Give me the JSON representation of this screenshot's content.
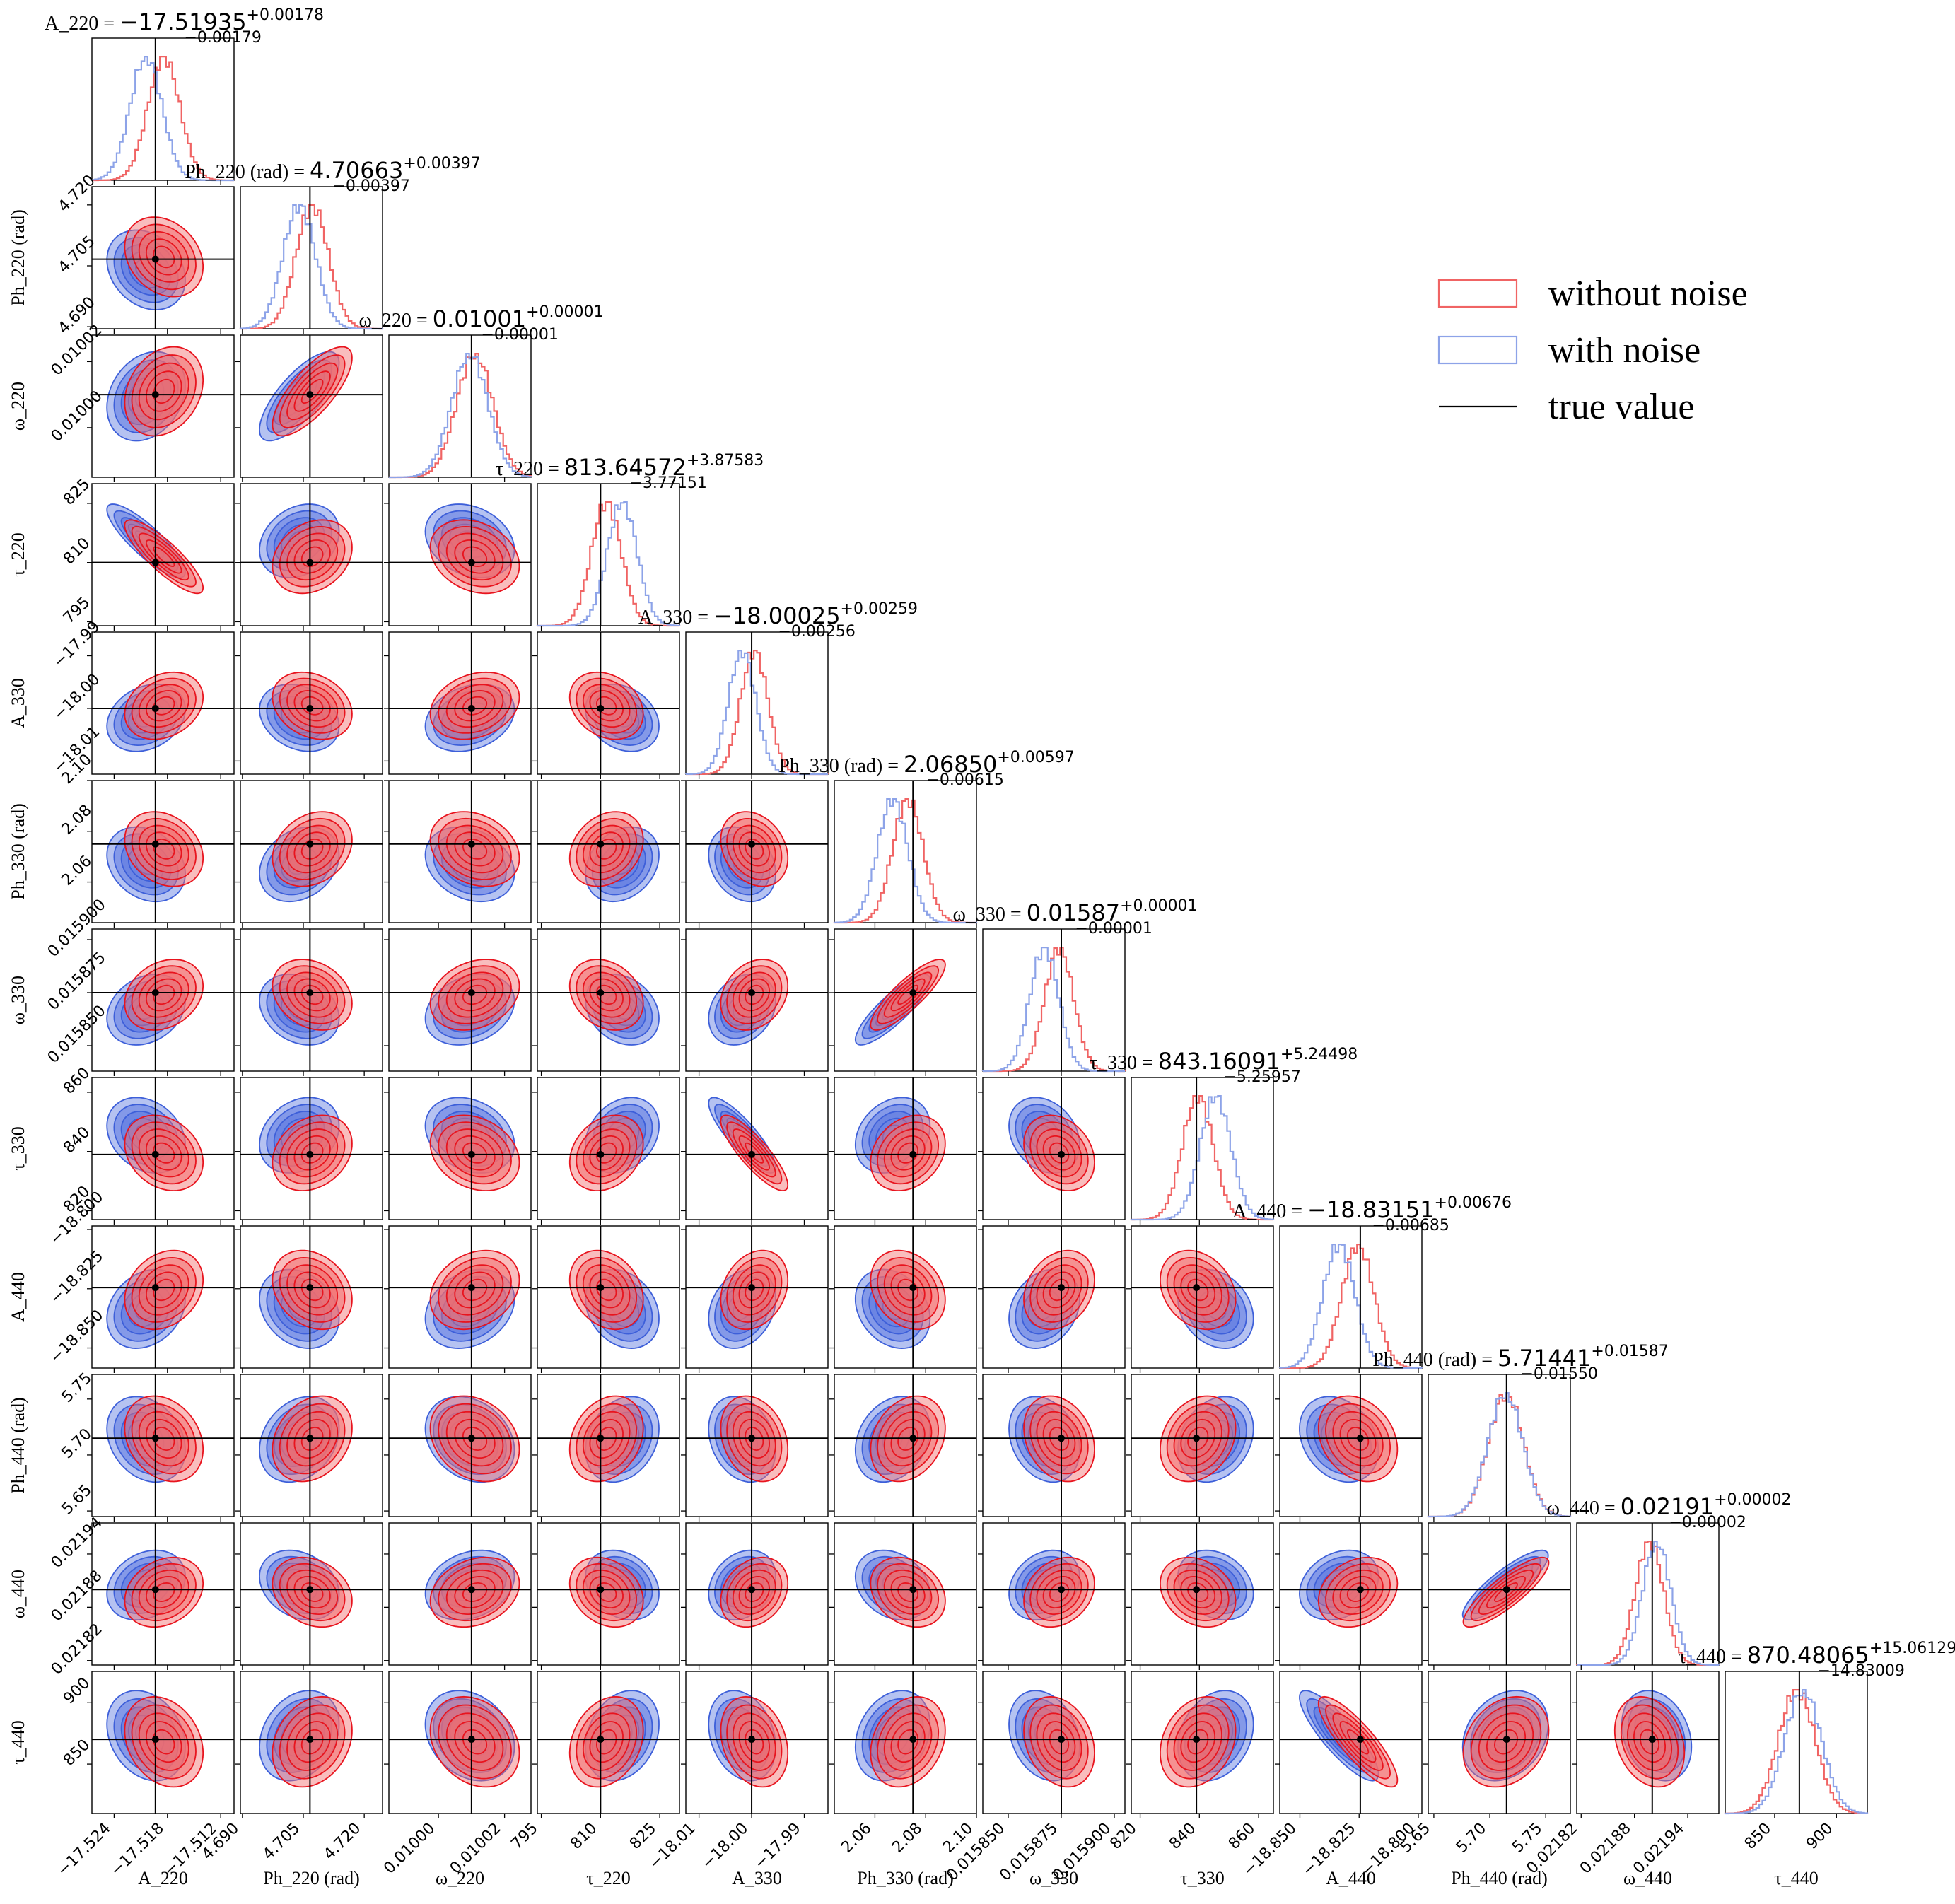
{
  "chart_data": {
    "type": "corner",
    "parameters": [
      {
        "key": "A_220",
        "label": "A_220",
        "truth": -17.51935,
        "range": [
          -17.5265,
          -17.5105
        ],
        "ticks": [
          -17.524,
          -17.518,
          -17.512
        ],
        "tick_labels": [
          "−17.524",
          "−17.518",
          "−17.512"
        ],
        "title": {
          "label": "A_220",
          "value": "−17.51935",
          "plus": "+0.00178",
          "minus": "−0.00179"
        },
        "hist_red": {
          "mean": -17.5184,
          "sd": 0.0018
        },
        "hist_blue": {
          "mean": -17.5204,
          "sd": 0.0018
        }
      },
      {
        "key": "Ph_220",
        "label": "Ph_220 (rad)",
        "truth": 4.70663,
        "range": [
          4.6895,
          4.7245
        ],
        "ticks": [
          4.69,
          4.705,
          4.72
        ],
        "tick_labels": [
          "4.690",
          "4.705",
          "4.720"
        ],
        "title": {
          "label": "Ph_220 (rad)",
          "value": "4.70663",
          "plus": "+0.00397",
          "minus": "−0.00397"
        },
        "hist_red": {
          "mean": 4.7072,
          "sd": 0.004
        },
        "hist_blue": {
          "mean": 4.704,
          "sd": 0.004
        }
      },
      {
        "key": "w_220",
        "label": "ω_220",
        "truth": 0.01001,
        "range": [
          0.009985,
          0.010028
        ],
        "ticks": [
          0.01,
          0.01002
        ],
        "tick_labels": [
          "0.01000",
          "0.01002"
        ],
        "title": {
          "label": "ω_220",
          "value": "0.01001",
          "plus": "+0.00001",
          "minus": "−0.00001"
        },
        "hist_red": {
          "mean": 0.010011,
          "sd": 5.5e-06
        },
        "hist_blue": {
          "mean": 0.0100095,
          "sd": 5.5e-06
        }
      },
      {
        "key": "tau_220",
        "label": "τ_220",
        "truth": 810,
        "range": [
          794,
          830
        ],
        "ticks": [
          795,
          810,
          825
        ],
        "tick_labels": [
          "795",
          "810",
          "825"
        ],
        "title": {
          "label": "τ_220",
          "value": "813.64572",
          "plus": "+3.87583",
          "minus": "−3.77151"
        },
        "hist_red": {
          "mean": 811.5,
          "sd": 3.8
        },
        "hist_blue": {
          "mean": 815.5,
          "sd": 3.8
        }
      },
      {
        "key": "A_330",
        "label": "A_330",
        "truth": -18.0,
        "range": [
          -18.0125,
          -17.9855
        ],
        "ticks": [
          -18.01,
          -18.0,
          -17.99
        ],
        "tick_labels": [
          "−18.01",
          "−18.00",
          "−17.99"
        ],
        "title": {
          "label": "A_330",
          "value": "−18.00025",
          "plus": "+0.00259",
          "minus": "−0.00256"
        },
        "hist_red": {
          "mean": -17.9995,
          "sd": 0.0026
        },
        "hist_blue": {
          "mean": -18.0018,
          "sd": 0.0026
        }
      },
      {
        "key": "Ph_330",
        "label": "Ph_330 (rad)",
        "truth": 2.075,
        "range": [
          2.044,
          2.1
        ],
        "ticks": [
          2.06,
          2.08,
          2.1
        ],
        "tick_labels": [
          "2.06",
          "2.08",
          "2.10"
        ],
        "title": {
          "label": "Ph_330 (rad)",
          "value": "2.06850",
          "plus": "+0.00597",
          "minus": "−0.00615"
        },
        "hist_red": {
          "mean": 2.073,
          "sd": 0.006
        },
        "hist_blue": {
          "mean": 2.067,
          "sd": 0.006
        }
      },
      {
        "key": "w_330",
        "label": "ω_330",
        "truth": 0.015875,
        "range": [
          0.015838,
          0.015905
        ],
        "ticks": [
          0.01585,
          0.015875,
          0.0159
        ],
        "tick_labels": [
          "0.015850",
          "0.015875",
          "0.015900"
        ],
        "title": {
          "label": "ω_330",
          "value": "0.01587",
          "plus": "+0.00001",
          "minus": "−0.00001"
        },
        "hist_red": {
          "mean": 0.015874,
          "sd": 6.8e-06
        },
        "hist_blue": {
          "mean": 0.015867,
          "sd": 6.8e-06
        }
      },
      {
        "key": "tau_330",
        "label": "τ_330",
        "truth": 839,
        "range": [
          817,
          865
        ],
        "ticks": [
          820,
          840,
          860
        ],
        "tick_labels": [
          "820",
          "840",
          "860"
        ],
        "title": {
          "label": "τ_330",
          "value": "843.16091",
          "plus": "+5.24498",
          "minus": "−5.25957"
        },
        "hist_red": {
          "mean": 839.5,
          "sd": 5.2
        },
        "hist_blue": {
          "mean": 845.5,
          "sd": 5.2
        }
      },
      {
        "key": "A_440",
        "label": "A_440",
        "truth": -18.8245,
        "range": [
          -18.8585,
          -18.7985
        ],
        "ticks": [
          -18.85,
          -18.825,
          -18.8
        ],
        "tick_labels": [
          "−18.850",
          "−18.825",
          "−18.800"
        ],
        "title": {
          "label": "A_440",
          "value": "−18.83151",
          "plus": "+0.00676",
          "minus": "−0.00685"
        },
        "hist_red": {
          "mean": -18.8255,
          "sd": 0.0068
        },
        "hist_blue": {
          "mean": -18.8335,
          "sd": 0.0068
        }
      },
      {
        "key": "Ph_440",
        "label": "Ph_440 (rad)",
        "truth": 5.715,
        "range": [
          5.645,
          5.772
        ],
        "ticks": [
          5.65,
          5.7,
          5.75
        ],
        "tick_labels": [
          "5.65",
          "5.70",
          "5.75"
        ],
        "title": {
          "label": "Ph_440 (rad)",
          "value": "5.71441",
          "plus": "+0.01587",
          "minus": "−0.01550"
        },
        "hist_red": {
          "mean": 5.7145,
          "sd": 0.0156
        },
        "hist_blue": {
          "mean": 5.714,
          "sd": 0.0156
        }
      },
      {
        "key": "w_440",
        "label": "ω_440",
        "truth": 0.0219,
        "range": [
          0.021815,
          0.021975
        ],
        "ticks": [
          0.02182,
          0.02188,
          0.02194
        ],
        "tick_labels": [
          "0.02182",
          "0.02188",
          "0.02194"
        ],
        "title": {
          "label": "ω_440",
          "value": "0.02191",
          "plus": "+0.00002",
          "minus": "−0.00002"
        },
        "hist_red": {
          "mean": 0.021897,
          "sd": 1.6e-05
        },
        "hist_blue": {
          "mean": 0.021905,
          "sd": 1.6e-05
        }
      },
      {
        "key": "tau_440",
        "label": "τ_440",
        "truth": 870,
        "range": [
          810,
          925
        ],
        "ticks": [
          850,
          900
        ],
        "tick_labels": [
          "850",
          "900"
        ],
        "title": {
          "label": "τ_440",
          "value": "870.48065",
          "plus": "+15.06129",
          "minus": "−14.83009"
        },
        "hist_red": {
          "mean": 868,
          "sd": 14.9
        },
        "hist_blue": {
          "mean": 873,
          "sd": 14.9
        }
      }
    ],
    "legend": {
      "position": "upper-right",
      "entries": [
        {
          "label": "without noise",
          "color": "#f06464",
          "kind": "box"
        },
        {
          "label": "with noise",
          "color": "#8da3e8",
          "kind": "box"
        },
        {
          "label": "true value",
          "color": "#000000",
          "kind": "line"
        }
      ]
    },
    "colors": {
      "red_line": "#e8141e",
      "red_fill": "#f26d6d",
      "blue_line": "#3d5fd9",
      "blue_fill": "#5b78e0",
      "red_hist": "#f06464",
      "blue_hist": "#8da3e8",
      "truth": "#000000"
    }
  }
}
